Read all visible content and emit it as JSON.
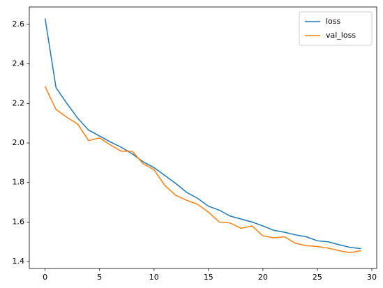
{
  "chart_data": {
    "type": "line",
    "x": [
      0,
      1,
      2,
      3,
      4,
      5,
      6,
      7,
      8,
      9,
      10,
      11,
      12,
      13,
      14,
      15,
      16,
      17,
      18,
      19,
      20,
      21,
      22,
      23,
      24,
      25,
      26,
      27,
      28,
      29
    ],
    "series": [
      {
        "name": "loss",
        "color": "#1f77b4",
        "values": [
          2.63,
          2.28,
          2.2,
          2.125,
          2.065,
          2.035,
          2.005,
          1.978,
          1.945,
          1.905,
          1.875,
          1.835,
          1.795,
          1.75,
          1.72,
          1.68,
          1.66,
          1.63,
          1.615,
          1.6,
          1.58,
          1.558,
          1.548,
          1.535,
          1.525,
          1.505,
          1.5,
          1.485,
          1.472,
          1.465
        ]
      },
      {
        "name": "val_loss",
        "color": "#ff7f0e",
        "values": [
          2.285,
          2.17,
          2.13,
          2.095,
          2.012,
          2.025,
          1.99,
          1.958,
          1.958,
          1.895,
          1.865,
          1.785,
          1.735,
          1.71,
          1.69,
          1.65,
          1.6,
          1.595,
          1.568,
          1.58,
          1.53,
          1.52,
          1.525,
          1.492,
          1.48,
          1.476,
          1.468,
          1.455,
          1.445,
          1.455
        ]
      }
    ],
    "xlim": [
      -1.45,
      30.45
    ],
    "xticks": [
      0,
      5,
      10,
      15,
      20,
      25,
      30
    ],
    "ylim": [
      1.365,
      2.688
    ],
    "yticks": [
      1.4,
      1.6,
      1.8,
      {
        "value": 2,
        "label": "2.0"
      },
      2.2,
      2.4,
      2.6
    ],
    "legend": "upper right",
    "grid": false
  }
}
